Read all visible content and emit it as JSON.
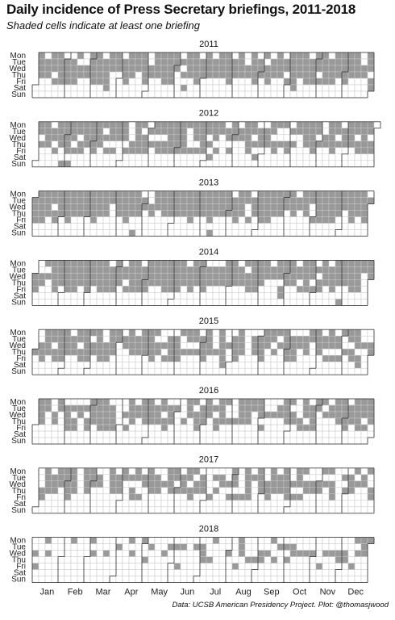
{
  "chart_data": {
    "type": "heatmap",
    "title": "Daily incidence of Press Secretary briefings, 2011-2018",
    "subtitle": "Shaded cells indicate at least one briefing",
    "caption": "Data: UCSB American Presidency Project. Plot: @thomasjwood",
    "weekday_labels": [
      "Mon",
      "Tue",
      "Wed",
      "Thu",
      "Fri",
      "Sat",
      "Sun"
    ],
    "month_labels": [
      "Jan",
      "Feb",
      "Mar",
      "Apr",
      "May",
      "Jun",
      "Jul",
      "Aug",
      "Sep",
      "Oct",
      "Nov",
      "Dec"
    ],
    "colors": {
      "shaded": "#999999",
      "empty": "#ffffff",
      "grid": "#c8c8c8",
      "month_border": "#333333"
    },
    "legend": "none",
    "years": [
      {
        "year": "2011",
        "briefing_days": "approx_medium_high",
        "weekday_prob": [
          0.78,
          0.82,
          0.8,
          0.74,
          0.35,
          0.02,
          0.01
        ]
      },
      {
        "year": "2012",
        "briefing_days": "approx_medium_high",
        "weekday_prob": [
          0.7,
          0.75,
          0.72,
          0.68,
          0.4,
          0.05,
          0.03
        ]
      },
      {
        "year": "2013",
        "briefing_days": "approx_high",
        "weekday_prob": [
          0.82,
          0.85,
          0.82,
          0.78,
          0.3,
          0.03,
          0.02
        ]
      },
      {
        "year": "2014",
        "briefing_days": "approx_medium_high",
        "weekday_prob": [
          0.75,
          0.8,
          0.76,
          0.72,
          0.35,
          0.02,
          0.01
        ]
      },
      {
        "year": "2015",
        "briefing_days": "approx_medium_high",
        "weekday_prob": [
          0.72,
          0.76,
          0.74,
          0.72,
          0.38,
          0.02,
          0.01
        ]
      },
      {
        "year": "2016",
        "briefing_days": "approx_medium",
        "weekday_prob": [
          0.6,
          0.66,
          0.64,
          0.6,
          0.3,
          0.02,
          0.01
        ]
      },
      {
        "year": "2017",
        "briefing_days": "approx_medium",
        "weekday_prob": [
          0.5,
          0.6,
          0.58,
          0.55,
          0.3,
          0.01,
          0.0
        ]
      },
      {
        "year": "2018",
        "briefing_days": "approx_low",
        "weekday_prob": [
          0.2,
          0.28,
          0.3,
          0.2,
          0.08,
          0.0,
          0.0
        ]
      }
    ]
  }
}
